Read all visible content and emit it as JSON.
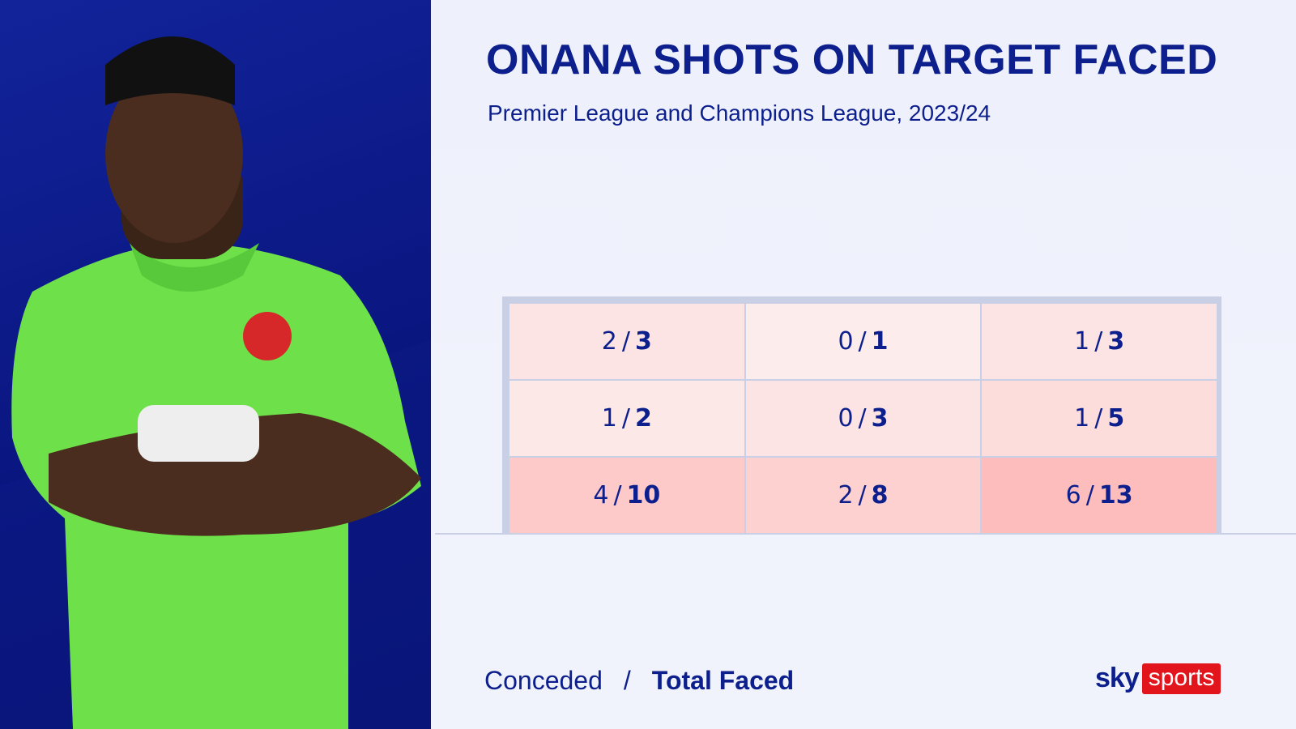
{
  "header": {
    "title": "ONANA SHOTS ON TARGET FACED",
    "subtitle": "Premier League and Champions League, 2023/24"
  },
  "grid": {
    "separator": "/",
    "rows": [
      [
        {
          "conceded": 2,
          "total": 3
        },
        {
          "conceded": 0,
          "total": 1
        },
        {
          "conceded": 1,
          "total": 3
        }
      ],
      [
        {
          "conceded": 1,
          "total": 2
        },
        {
          "conceded": 0,
          "total": 3
        },
        {
          "conceded": 1,
          "total": 5
        }
      ],
      [
        {
          "conceded": 4,
          "total": 10
        },
        {
          "conceded": 2,
          "total": 8
        },
        {
          "conceded": 6,
          "total": 13
        }
      ]
    ]
  },
  "legend": {
    "conceded": "Conceded",
    "separator": "/",
    "total": "Total Faced"
  },
  "logo": {
    "sky": "sky",
    "sports": "sports"
  }
}
